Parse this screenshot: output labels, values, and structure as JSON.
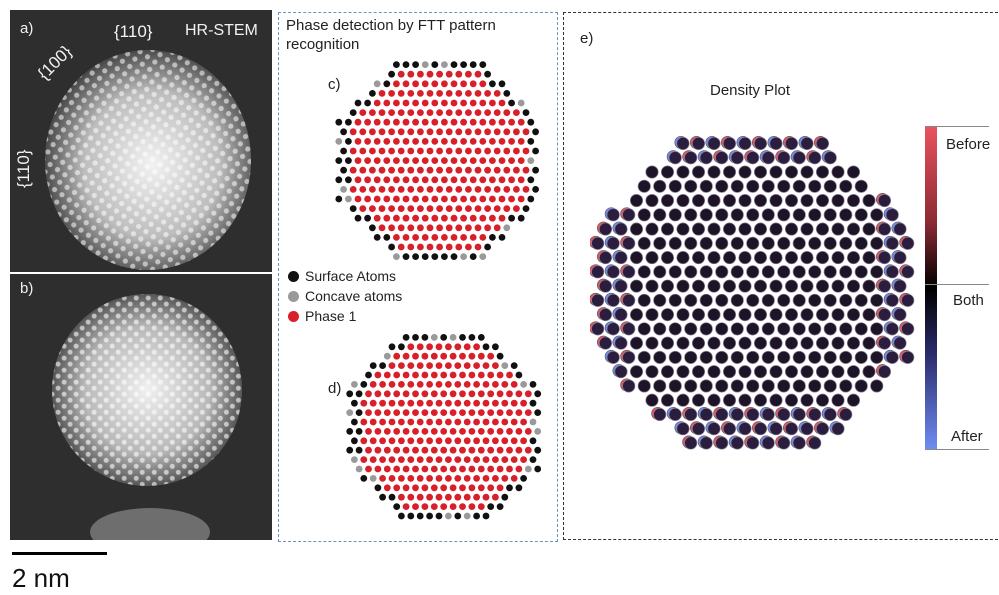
{
  "panel_a": {
    "letter": "a)",
    "facet_top": "{110}",
    "facet_left_top": "{100}",
    "facet_left": "{110}",
    "technique": "HR-STEM"
  },
  "panel_b": {
    "letter": "b)"
  },
  "scalebar": {
    "label": "2 nm"
  },
  "phase_detection": {
    "title_line1": "Phase detection by FTT pattern",
    "title_line2": "recognition",
    "panel_c": "c)",
    "panel_d": "d)",
    "legend": [
      {
        "label": "Surface Atoms",
        "color": "#111111"
      },
      {
        "label": "Concave atoms",
        "color": "#9a9a9a"
      },
      {
        "label": "Phase 1",
        "color": "#d8202a"
      }
    ]
  },
  "panel_e": {
    "letter": "e)",
    "title": "Density Plot",
    "colorbar": {
      "top": "Before",
      "middle": "Both",
      "bottom": "After",
      "top_color": "#e8535e",
      "mid_color": "#000000",
      "bottom_color": "#6f8cf2"
    }
  },
  "colors": {
    "stem_bg": "#2e2e2e",
    "phase1": "#d8202a",
    "surface": "#111111",
    "concave": "#9a9a9a",
    "box_c": "#6a93c4",
    "box_e": "#333333"
  }
}
